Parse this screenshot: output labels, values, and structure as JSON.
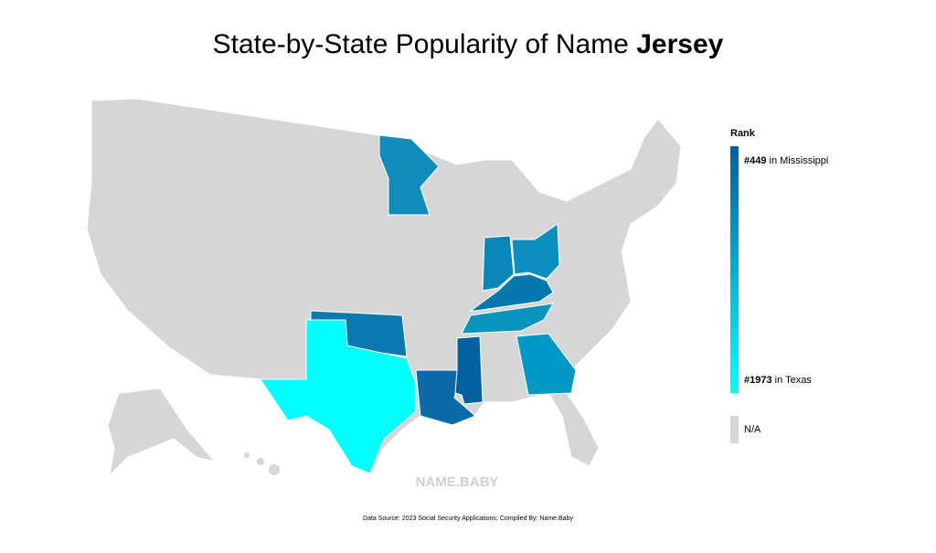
{
  "header": {
    "title": "State-by-State Popularity of Name",
    "name": "Jersey"
  },
  "legend": {
    "title": "Rank",
    "top": {
      "rank": "#449",
      "place": "in Mississippi",
      "color": "#02619f"
    },
    "bottom": {
      "rank": "#1973",
      "place": "in Texas",
      "color": "#00ffff"
    },
    "na": {
      "label": "N/A",
      "color": "#d6d6d6"
    }
  },
  "watermark": "NAME.BABY",
  "footer": "Data Source: 2023 Social Security Applications; Compiled By: Name.Baby"
}
